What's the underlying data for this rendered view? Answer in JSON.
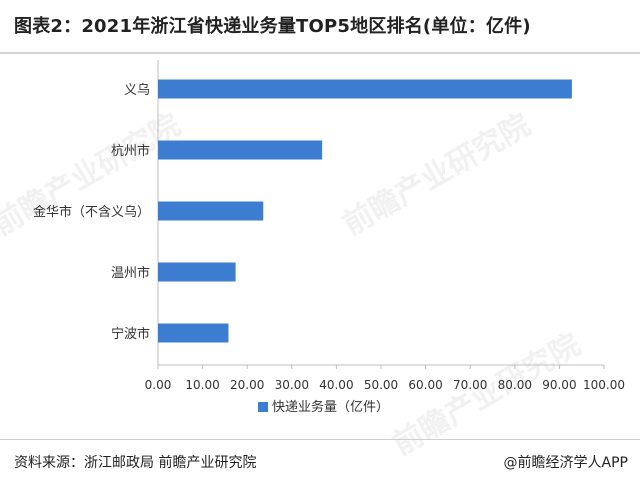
{
  "header": {
    "title": "图表2：2021年浙江省快递业务量TOP5地区排名(单位：亿件)"
  },
  "footer": {
    "source": "资料来源：浙江邮政局 前瞻产业研究院",
    "credit": "@前瞻经济学人APP"
  },
  "watermark": "前瞻产业研究院",
  "chart_data": {
    "type": "bar",
    "orientation": "horizontal",
    "categories": [
      "义乌",
      "杭州市",
      "金华市（不含义乌）",
      "温州市",
      "宁波市"
    ],
    "series": [
      {
        "name": "快递业务量（亿件）",
        "values": [
          92.8,
          36.8,
          23.6,
          17.4,
          15.8
        ],
        "color": "#3d7dd1"
      }
    ],
    "xlim": [
      0,
      100
    ],
    "xticks": [
      "0.00",
      "10.00",
      "20.00",
      "30.00",
      "40.00",
      "50.00",
      "60.00",
      "70.00",
      "80.00",
      "90.00",
      "100.00"
    ],
    "grid": false,
    "legend_position": "bottom"
  }
}
